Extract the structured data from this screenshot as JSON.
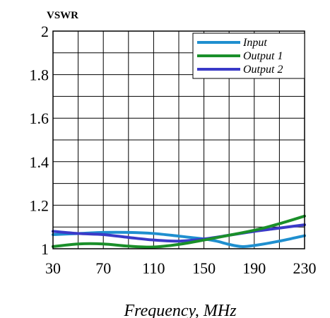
{
  "chart_data": {
    "type": "line",
    "ylabel": "VSWR",
    "xlabel": "Frequency, MHz",
    "xlim": [
      30,
      230
    ],
    "ylim": [
      1,
      2
    ],
    "x_ticks": [
      30,
      50,
      70,
      90,
      110,
      130,
      150,
      170,
      190,
      210,
      230
    ],
    "x_tick_labels": [
      "30",
      "70",
      "110",
      "150",
      "190",
      "230"
    ],
    "x_tick_label_values": [
      30,
      70,
      110,
      150,
      190,
      230
    ],
    "y_ticks": [
      1,
      1.1,
      1.2,
      1.3,
      1.4,
      1.5,
      1.6,
      1.7,
      1.8,
      1.9,
      2
    ],
    "y_tick_labels": [
      "1",
      "1.2",
      "1.4",
      "1.6",
      "1.8",
      "2"
    ],
    "y_tick_label_values": [
      1,
      1.2,
      1.4,
      1.6,
      1.8,
      2
    ],
    "grid": true,
    "legend_position": "top-right",
    "series": [
      {
        "name": "Input",
        "color": "#1f8fcf",
        "x": [
          30,
          50,
          70,
          90,
          110,
          130,
          150,
          160,
          170,
          180,
          190,
          210,
          230
        ],
        "y": [
          1.065,
          1.07,
          1.075,
          1.075,
          1.07,
          1.058,
          1.045,
          1.035,
          1.02,
          1.01,
          1.015,
          1.035,
          1.06
        ]
      },
      {
        "name": "Output 1",
        "color": "#1a8f2a",
        "x": [
          30,
          50,
          70,
          90,
          110,
          130,
          150,
          170,
          190,
          210,
          230
        ],
        "y": [
          1.01,
          1.022,
          1.022,
          1.012,
          1.008,
          1.02,
          1.04,
          1.062,
          1.085,
          1.115,
          1.15
        ]
      },
      {
        "name": "Output 2",
        "color": "#3a3ac8",
        "x": [
          30,
          50,
          70,
          90,
          110,
          130,
          150,
          170,
          190,
          210,
          230
        ],
        "y": [
          1.08,
          1.07,
          1.065,
          1.052,
          1.04,
          1.035,
          1.045,
          1.062,
          1.08,
          1.095,
          1.11
        ]
      }
    ]
  }
}
